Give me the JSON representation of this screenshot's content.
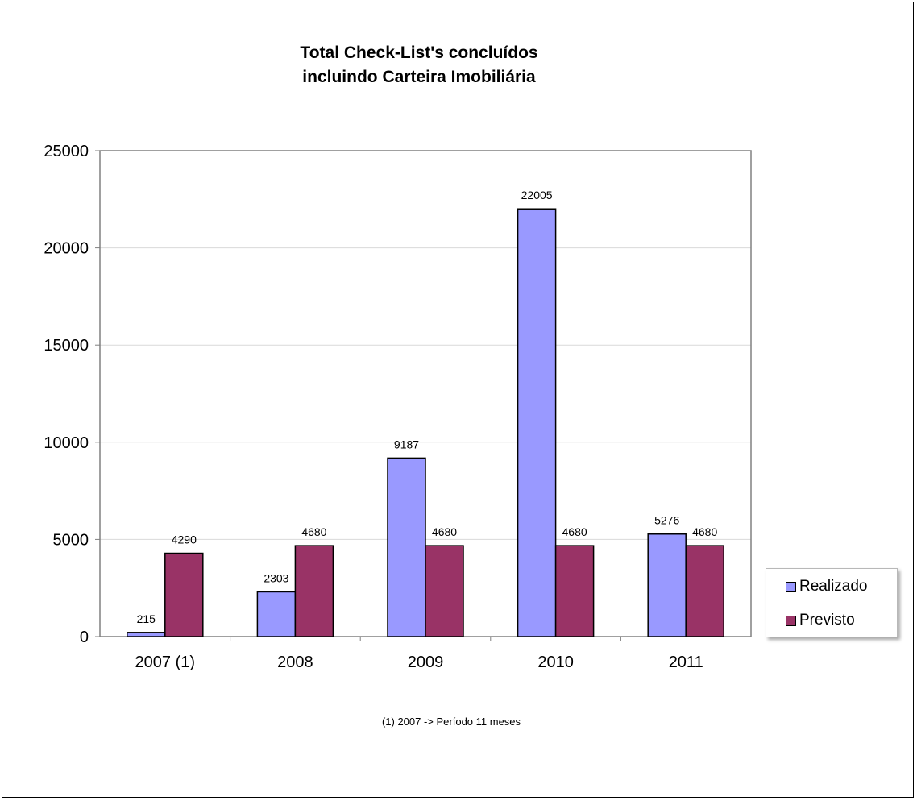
{
  "chart_data": {
    "type": "bar",
    "title_lines": [
      "Total Check-List's concluídos",
      "incluindo Carteira Imobiliária"
    ],
    "categories": [
      "2007 (1)",
      "2008",
      "2009",
      "2010",
      "2011"
    ],
    "series": [
      {
        "name": "Realizado",
        "color": "#9999ff",
        "values": [
          215,
          2303,
          9187,
          22005,
          5276
        ]
      },
      {
        "name": "Previsto",
        "color": "#993366",
        "values": [
          4290,
          4680,
          4680,
          4680,
          4680
        ]
      }
    ],
    "ylim": [
      0,
      25000
    ],
    "yticks": [
      0,
      5000,
      10000,
      15000,
      20000,
      25000
    ],
    "grid": true,
    "legend_position": "right",
    "footnote": "(1) 2007 -> Período 11 meses"
  }
}
